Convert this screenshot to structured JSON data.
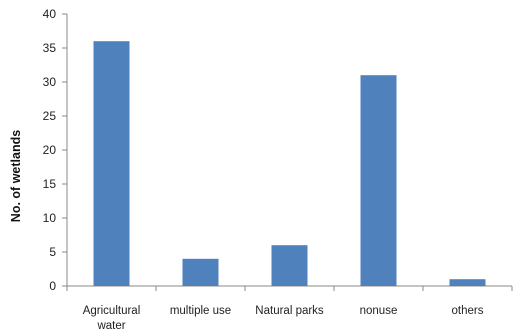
{
  "chart_data": {
    "type": "bar",
    "title": "",
    "xlabel": "",
    "ylabel": "No. of wetlands",
    "ylim": [
      0,
      40
    ],
    "yticks": [
      0,
      5,
      10,
      15,
      20,
      25,
      30,
      35,
      40
    ],
    "grid": false,
    "legend": "none",
    "categories": [
      [
        "Agricultural",
        "water"
      ],
      [
        "multiple use"
      ],
      [
        "Natural parks"
      ],
      [
        "nonuse"
      ],
      [
        "others"
      ]
    ],
    "values": [
      36,
      4,
      6,
      31,
      1
    ],
    "bar_color": "#4f81bd",
    "axis_color": "#888888"
  }
}
